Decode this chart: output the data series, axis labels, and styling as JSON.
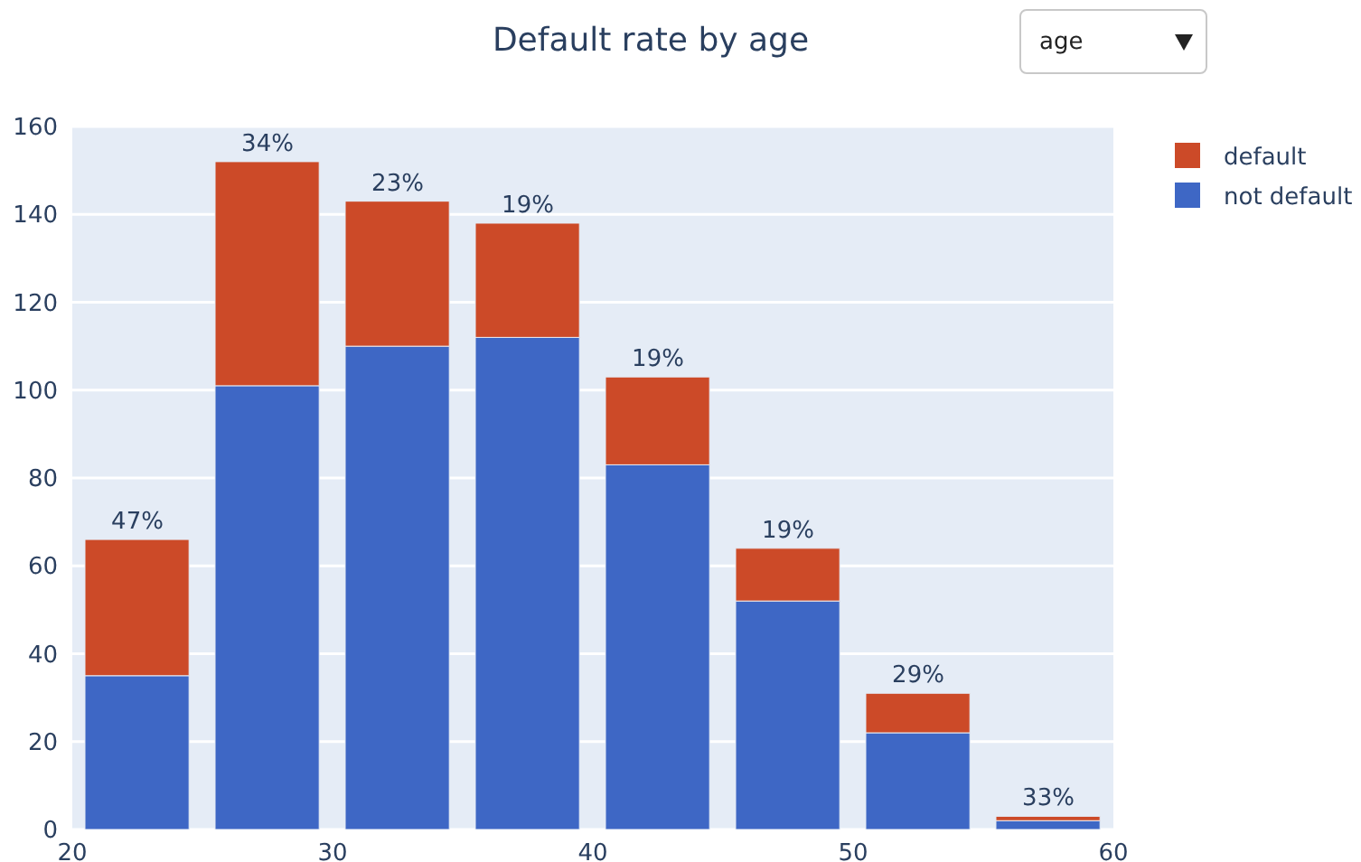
{
  "chart_data": {
    "type": "bar",
    "title": "Default rate by age",
    "x": [
      22.5,
      27.5,
      32.5,
      37.5,
      42.5,
      47.5,
      52.5,
      57.5
    ],
    "series": [
      {
        "name": "not default",
        "color": "#3e67c5",
        "values": [
          35,
          101,
          110,
          112,
          83,
          52,
          22,
          2
        ]
      },
      {
        "name": "default",
        "color": "#cc4a28",
        "values": [
          31,
          51,
          33,
          26,
          20,
          12,
          9,
          1
        ]
      }
    ],
    "stacked": true,
    "xlim": [
      20,
      60
    ],
    "xticks": [
      20,
      30,
      40,
      50,
      60
    ],
    "ylim": [
      0,
      160
    ],
    "yticks": [
      0,
      20,
      40,
      60,
      80,
      100,
      120,
      140,
      160
    ],
    "grid": "y",
    "legend": "top right",
    "annotations": [
      "age",
      {
        "text": "47%",
        "x": 22.5,
        "y": 66
      },
      {
        "text": "34%",
        "x": 27.5,
        "y": 152
      },
      {
        "text": "23%",
        "x": 32.5,
        "y": 143
      },
      {
        "text": "19%",
        "x": 37.5,
        "y": 138
      },
      {
        "text": "19%",
        "x": 42.5,
        "y": 103
      },
      {
        "text": "19%",
        "x": 47.5,
        "y": 64
      },
      {
        "text": "29%",
        "x": 52.5,
        "y": 31
      },
      {
        "text": "33%",
        "x": 57.5,
        "y": 3
      }
    ]
  }
}
